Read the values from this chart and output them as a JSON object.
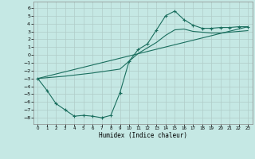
{
  "xlabel": "Humidex (Indice chaleur)",
  "background_color": "#c5e8e4",
  "grid_color": "#b0ccc8",
  "line_color": "#1a6e5e",
  "xlim": [
    -0.5,
    23.5
  ],
  "ylim": [
    -8.8,
    6.8
  ],
  "xticks": [
    0,
    1,
    2,
    3,
    4,
    5,
    6,
    7,
    8,
    9,
    10,
    11,
    12,
    13,
    14,
    15,
    16,
    17,
    18,
    19,
    20,
    21,
    22,
    23
  ],
  "yticks": [
    -8,
    -7,
    -6,
    -5,
    -4,
    -3,
    -2,
    -1,
    0,
    1,
    2,
    3,
    4,
    5,
    6
  ],
  "curve1_x": [
    0,
    1,
    2,
    3,
    4,
    5,
    6,
    7,
    8,
    9,
    10,
    11,
    12,
    13,
    14,
    15,
    16,
    17,
    18,
    19,
    20,
    21,
    22,
    23
  ],
  "curve1_y": [
    -3.0,
    -4.5,
    -6.2,
    -7.0,
    -7.8,
    -7.7,
    -7.8,
    -8.0,
    -7.7,
    -4.8,
    -0.8,
    0.7,
    1.4,
    3.2,
    5.0,
    5.6,
    4.5,
    3.8,
    3.4,
    3.4,
    3.5,
    3.5,
    3.6,
    3.6
  ],
  "line_x": [
    0,
    23
  ],
  "line_y": [
    -3.0,
    3.6
  ],
  "curve2_x": [
    0,
    3,
    6,
    9,
    10,
    11,
    12,
    13,
    14,
    15,
    16,
    17,
    18,
    19,
    20,
    21,
    22,
    23
  ],
  "curve2_y": [
    -3.0,
    -2.7,
    -2.3,
    -1.8,
    -0.8,
    0.2,
    0.9,
    1.6,
    2.5,
    3.2,
    3.3,
    3.0,
    2.9,
    2.8,
    2.8,
    2.9,
    3.0,
    3.1
  ]
}
